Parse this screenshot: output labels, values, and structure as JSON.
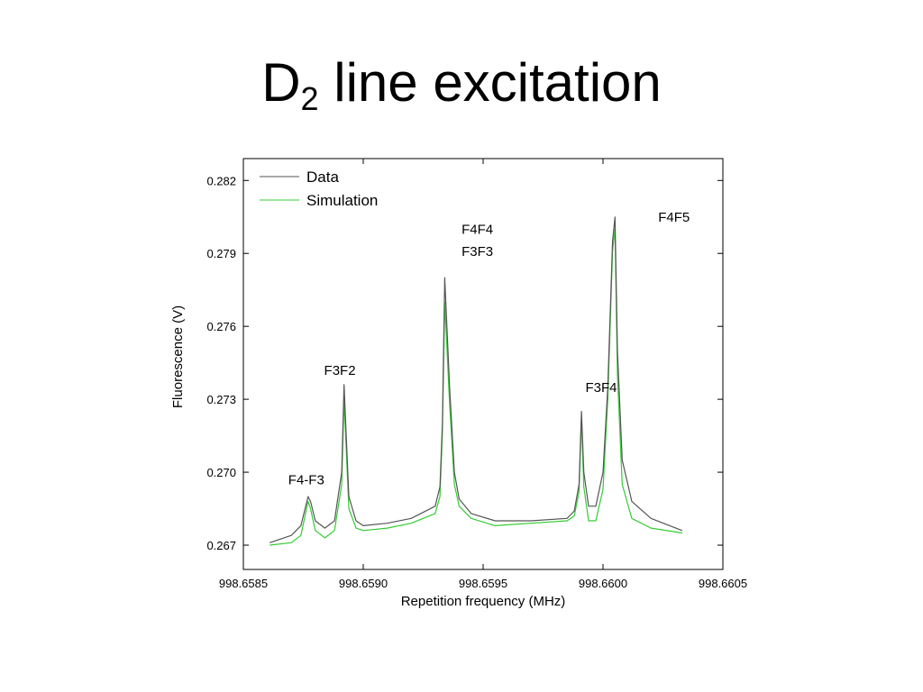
{
  "title": {
    "main": "D",
    "sub": "2",
    "rest": " line excitation"
  },
  "chart_data": {
    "type": "line",
    "xlabel": "Repetition frequency (MHz)",
    "ylabel": "Fluorescence (V)",
    "xlim": [
      998.6585,
      998.6605
    ],
    "ylim": [
      0.266,
      0.2829
    ],
    "x_ticks": [
      "998.6585",
      "998.6590",
      "998.6595",
      "998.6600",
      "998.6605"
    ],
    "y_ticks": [
      "0.267",
      "0.270",
      "0.273",
      "0.276",
      "0.279",
      "0.282"
    ],
    "legend_position": "top-left",
    "grid": false,
    "series": [
      {
        "name": "Data",
        "color": "#555555",
        "x": [
          998.65861,
          998.6587,
          998.65874,
          998.65877,
          998.65878,
          998.6588,
          998.65884,
          998.65888,
          998.65891,
          998.65892,
          998.65894,
          998.65897,
          998.659,
          998.6591,
          998.6592,
          998.6593,
          998.65932,
          998.65933,
          998.65934,
          998.65936,
          998.65938,
          998.6594,
          998.65945,
          998.65955,
          998.6597,
          998.65985,
          998.65988,
          998.6599,
          998.65991,
          998.65992,
          998.65994,
          998.65997,
          998.66,
          998.66002,
          998.66004,
          998.66005,
          998.66006,
          998.66008,
          998.66012,
          998.6602,
          998.66033
        ],
        "values": [
          0.2671,
          0.2674,
          0.2678,
          0.269,
          0.2688,
          0.268,
          0.2677,
          0.268,
          0.27,
          0.2736,
          0.269,
          0.268,
          0.2678,
          0.2679,
          0.2681,
          0.2686,
          0.2694,
          0.272,
          0.278,
          0.2735,
          0.27,
          0.2689,
          0.2683,
          0.268,
          0.268,
          0.2681,
          0.2684,
          0.2695,
          0.2725,
          0.27,
          0.2686,
          0.2686,
          0.27,
          0.2735,
          0.2795,
          0.2805,
          0.275,
          0.2705,
          0.2688,
          0.2681,
          0.2676
        ]
      },
      {
        "name": "Simulation",
        "color": "#33cc33",
        "x": [
          998.65861,
          998.6587,
          998.65874,
          998.65877,
          998.65878,
          998.6588,
          998.65884,
          998.65888,
          998.65891,
          998.65892,
          998.65894,
          998.65897,
          998.659,
          998.6591,
          998.6592,
          998.6593,
          998.65932,
          998.65933,
          998.65934,
          998.65936,
          998.65938,
          998.6594,
          998.65945,
          998.65955,
          998.6597,
          998.65985,
          998.65988,
          998.6599,
          998.65991,
          998.65992,
          998.65994,
          998.65997,
          998.66,
          998.66002,
          998.66004,
          998.66005,
          998.66006,
          998.66008,
          998.66012,
          998.6602,
          998.66033
        ],
        "values": [
          0.267,
          0.2671,
          0.2674,
          0.2688,
          0.2685,
          0.2676,
          0.2673,
          0.2676,
          0.2695,
          0.273,
          0.2685,
          0.2677,
          0.2676,
          0.2677,
          0.2679,
          0.2683,
          0.269,
          0.2716,
          0.277,
          0.2728,
          0.2695,
          0.2686,
          0.2681,
          0.2678,
          0.2679,
          0.268,
          0.2682,
          0.2692,
          0.2722,
          0.2694,
          0.268,
          0.268,
          0.2693,
          0.273,
          0.2791,
          0.28,
          0.274,
          0.2695,
          0.2681,
          0.2677,
          0.2675
        ]
      }
    ],
    "annotations": [
      {
        "text": "F4-F3",
        "x": 998.65877,
        "y": 0.2695
      },
      {
        "text": "F3F2",
        "x": 998.65891,
        "y": 0.274
      },
      {
        "text": "F4F4",
        "x": 998.65938,
        "y": 0.2798
      },
      {
        "text": "F3F3",
        "x": 998.65938,
        "y": 0.2789
      },
      {
        "text": "F3F4",
        "x": 998.66,
        "y": 0.2733
      },
      {
        "text": "F4F5",
        "x": 998.6602,
        "y": 0.2803
      }
    ]
  }
}
